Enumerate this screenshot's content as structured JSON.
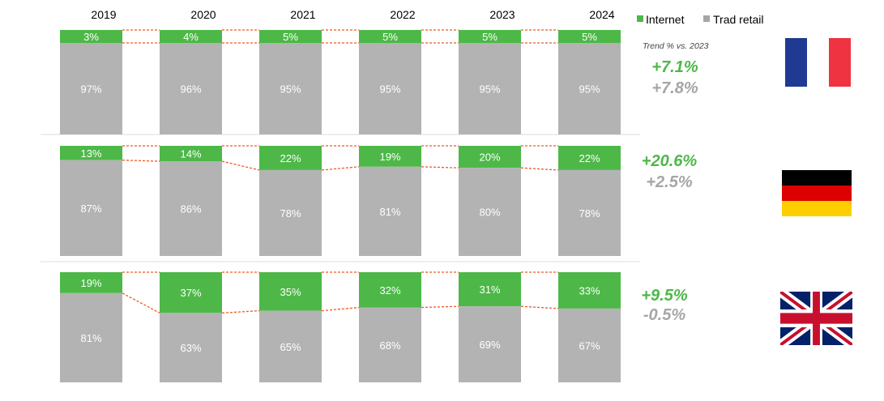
{
  "chart_data": {
    "type": "bar",
    "stacked": true,
    "normalized": true,
    "categories": [
      "2019",
      "2020",
      "2021",
      "2022",
      "2023",
      "2024"
    ],
    "legend": [
      {
        "name": "Internet",
        "color": "#4db848"
      },
      {
        "name": "Trad retail",
        "color": "#b3b3b3"
      }
    ],
    "trend_caption": "Trend % vs. 2023",
    "connector_color": "#ef5a24",
    "panels": [
      {
        "country": "France",
        "flag": "france-flag",
        "internet": [
          "3%",
          "4%",
          "5%",
          "5%",
          "5%",
          "5%"
        ],
        "trad": [
          "97%",
          "96%",
          "95%",
          "95%",
          "95%",
          "95%"
        ],
        "internet_values": [
          3,
          4,
          5,
          5,
          5,
          5
        ],
        "trad_values": [
          97,
          96,
          95,
          95,
          95,
          95
        ],
        "trend_internet": "+7.1%",
        "trend_trad": "+7.8%"
      },
      {
        "country": "Germany",
        "flag": "germany-flag",
        "internet": [
          "13%",
          "14%",
          "22%",
          "19%",
          "20%",
          "22%"
        ],
        "trad": [
          "87%",
          "86%",
          "78%",
          "81%",
          "80%",
          "78%"
        ],
        "internet_values": [
          13,
          14,
          22,
          19,
          20,
          22
        ],
        "trad_values": [
          87,
          86,
          78,
          81,
          80,
          78
        ],
        "trend_internet": "+20.6%",
        "trend_trad": "+2.5%"
      },
      {
        "country": "United Kingdom",
        "flag": "uk-flag",
        "internet": [
          "19%",
          "37%",
          "35%",
          "32%",
          "31%",
          "33%"
        ],
        "trad": [
          "81%",
          "63%",
          "65%",
          "68%",
          "69%",
          "67%"
        ],
        "internet_values": [
          19,
          37,
          35,
          32,
          31,
          33
        ],
        "trad_values": [
          81,
          63,
          65,
          68,
          69,
          67
        ],
        "trend_internet": "+9.5%",
        "trend_trad": "-0.5%"
      }
    ]
  }
}
